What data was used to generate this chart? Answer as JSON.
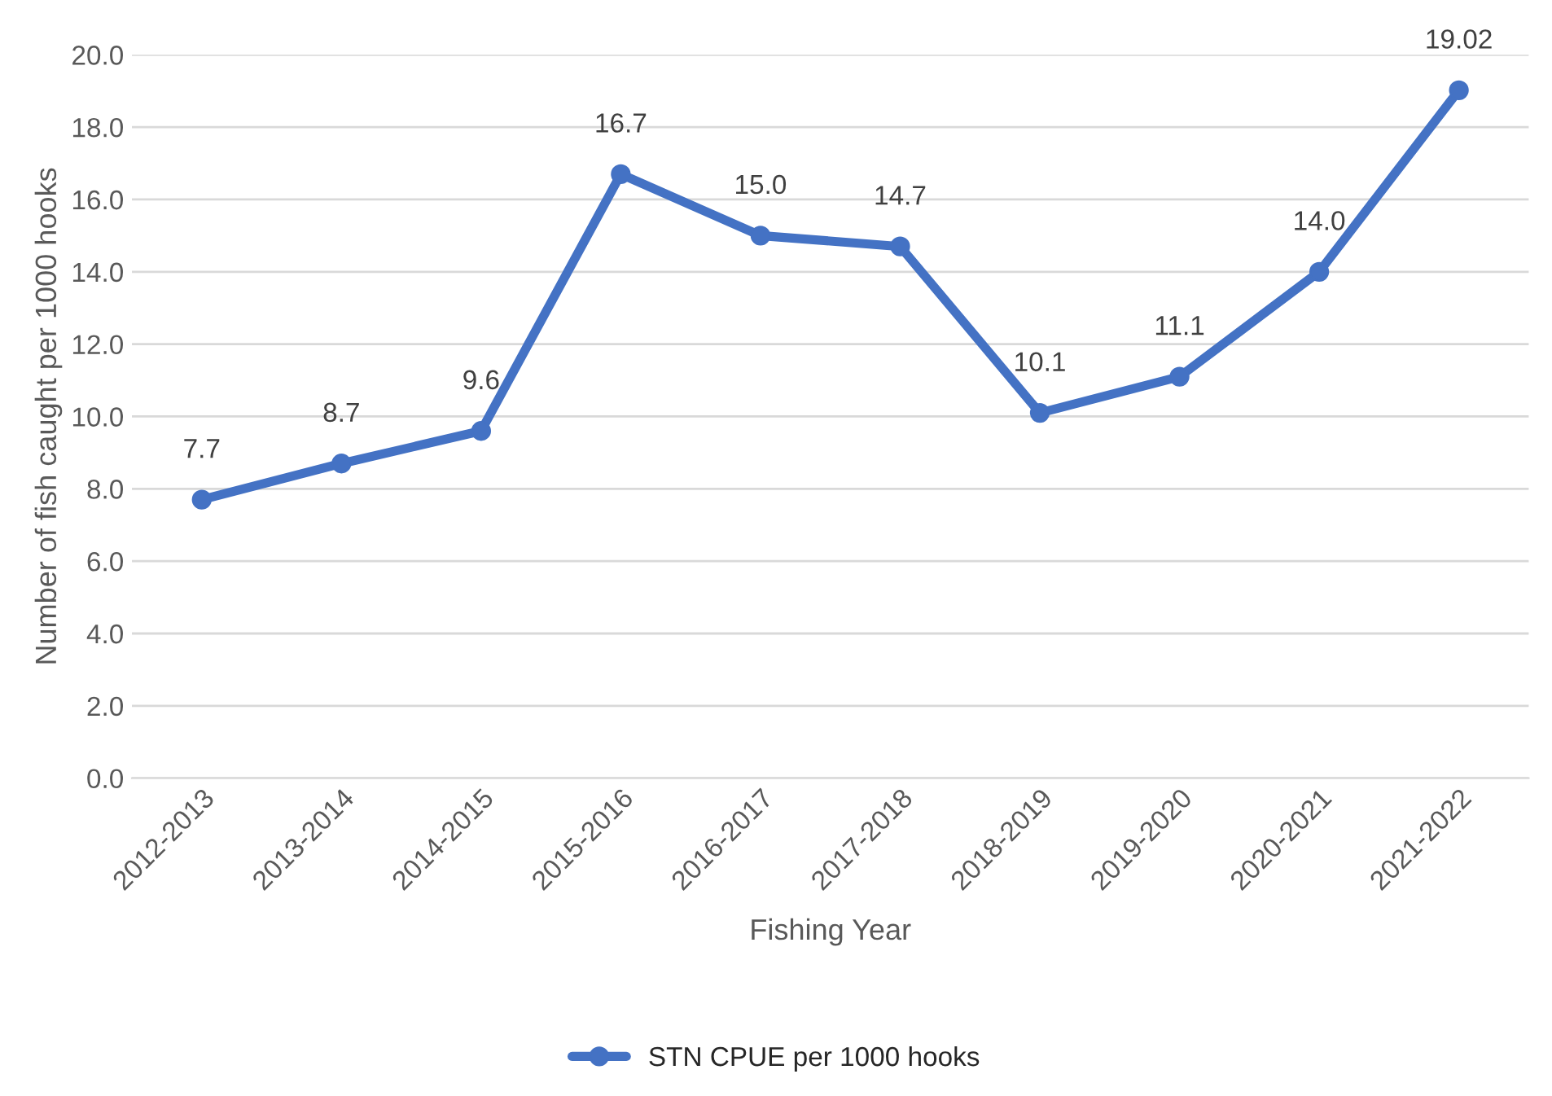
{
  "chart_data": {
    "type": "line",
    "xlabel": "Fishing Year",
    "ylabel": "Number of fish caught per 1000 hooks",
    "categories": [
      "2012-2013",
      "2013-2014",
      "2014-2015",
      "2015-2016",
      "2016-2017",
      "2017-2018",
      "2018-2019",
      "2019-2020",
      "2020-2021",
      "2021-2022"
    ],
    "series": [
      {
        "name": "STN CPUE per 1000 hooks",
        "color": "#4472c4",
        "values": [
          7.7,
          8.7,
          9.6,
          16.7,
          15.0,
          14.7,
          10.1,
          11.1,
          14.0,
          19.02
        ],
        "value_labels": [
          "7.7",
          "8.7",
          "9.6",
          "16.7",
          "15.0",
          "14.7",
          "10.1",
          "11.1",
          "14.0",
          "19.02"
        ]
      }
    ],
    "ylim": [
      0,
      20
    ],
    "yticks": [
      {
        "value": 0,
        "label": "0.0"
      },
      {
        "value": 2,
        "label": "2.0"
      },
      {
        "value": 4,
        "label": "4.0"
      },
      {
        "value": 6,
        "label": "6.0"
      },
      {
        "value": 8,
        "label": "8.0"
      },
      {
        "value": 10,
        "label": "10.0"
      },
      {
        "value": 12,
        "label": "12.0"
      },
      {
        "value": 14,
        "label": "14.0"
      },
      {
        "value": 16,
        "label": "16.0"
      },
      {
        "value": 18,
        "label": "18.0"
      },
      {
        "value": 20,
        "label": "20.0"
      }
    ],
    "grid": "y",
    "legend": "bottom",
    "marker": "circle",
    "line_style": "solid"
  }
}
